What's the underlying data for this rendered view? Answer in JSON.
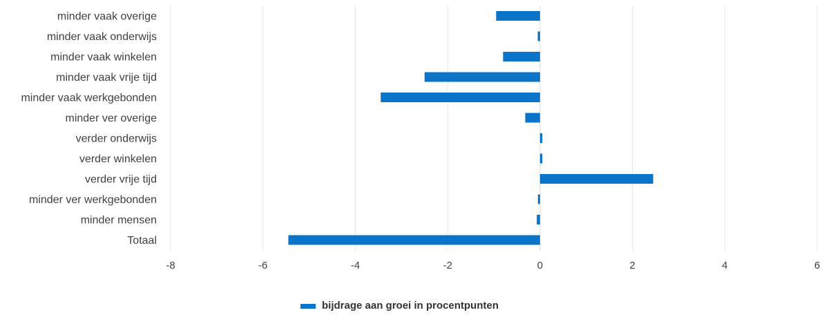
{
  "chart_data": {
    "type": "bar",
    "orientation": "horizontal",
    "categories": [
      "minder vaak overige",
      "minder vaak onderwijs",
      "minder vaak winkelen",
      "minder vaak vrije tijd",
      "minder vaak werkgebonden",
      "minder ver overige",
      "verder onderwijs",
      "verder winkelen",
      "verder vrije tijd",
      "minder ver werkgebonden",
      "minder mensen",
      "Totaal"
    ],
    "series": [
      {
        "name": "bijdrage aan groei in procentpunten",
        "color": "#0a74c9",
        "values": [
          -0.95,
          -0.05,
          -0.8,
          -2.5,
          -3.45,
          -0.32,
          0.05,
          0.05,
          2.45,
          -0.02,
          -0.07,
          -5.45
        ]
      }
    ],
    "xlim": [
      -8,
      6
    ],
    "xticks": [
      -8,
      -6,
      -4,
      -2,
      0,
      2,
      4,
      6
    ],
    "grid": true,
    "legend_position": "bottom-center"
  }
}
